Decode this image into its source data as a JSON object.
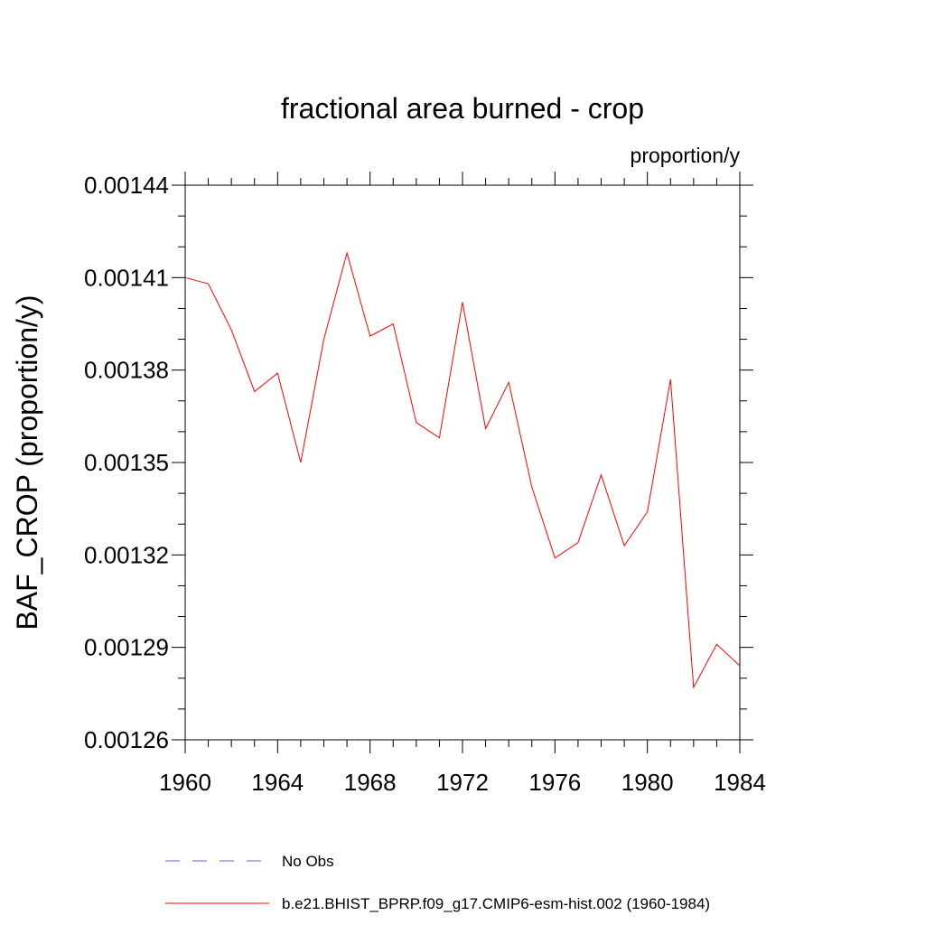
{
  "chart_data": {
    "type": "line",
    "title": "fractional area burned - crop",
    "units_label": "proportion/y",
    "ylabel": "BAF_CROP  (proportion/y)",
    "xlabel": "",
    "xlim": [
      1960,
      1984
    ],
    "ylim": [
      0.00126,
      0.00144
    ],
    "x_ticks": [
      1960,
      1964,
      1968,
      1972,
      1976,
      1980,
      1984
    ],
    "x_tick_labels": [
      "1960",
      "1964",
      "1968",
      "1972",
      "1976",
      "1980",
      "1984"
    ],
    "y_ticks": [
      0.00126,
      0.00129,
      0.00132,
      0.00135,
      0.00138,
      0.00141,
      0.00144
    ],
    "y_tick_labels": [
      "0.00126",
      "0.00129",
      "0.00132",
      "0.00135",
      "0.00138",
      "0.00141",
      "0.00144"
    ],
    "grid": false,
    "series": [
      {
        "name": "b.e21.BHIST_BPRP.f09_g17.CMIP6-esm-hist.002 (1960-1984)",
        "color": "#ff0000",
        "style": "solid",
        "x": [
          1960,
          1961,
          1962,
          1963,
          1964,
          1965,
          1966,
          1967,
          1968,
          1969,
          1970,
          1971,
          1972,
          1973,
          1974,
          1975,
          1976,
          1977,
          1978,
          1979,
          1980,
          1981,
          1982,
          1983,
          1984
        ],
        "values": [
          0.00141,
          0.001408,
          0.001393,
          0.001373,
          0.001379,
          0.00135,
          0.00139,
          0.001418,
          0.001391,
          0.001395,
          0.001363,
          0.001358,
          0.001402,
          0.001361,
          0.001376,
          0.001342,
          0.001319,
          0.001324,
          0.001346,
          0.001323,
          0.001334,
          0.001377,
          0.001277,
          0.001291,
          0.001284
        ]
      },
      {
        "name": "No Obs",
        "color": "#6a5acd",
        "style": "dashed",
        "x": [],
        "values": []
      }
    ],
    "legend_position": "bottom"
  }
}
